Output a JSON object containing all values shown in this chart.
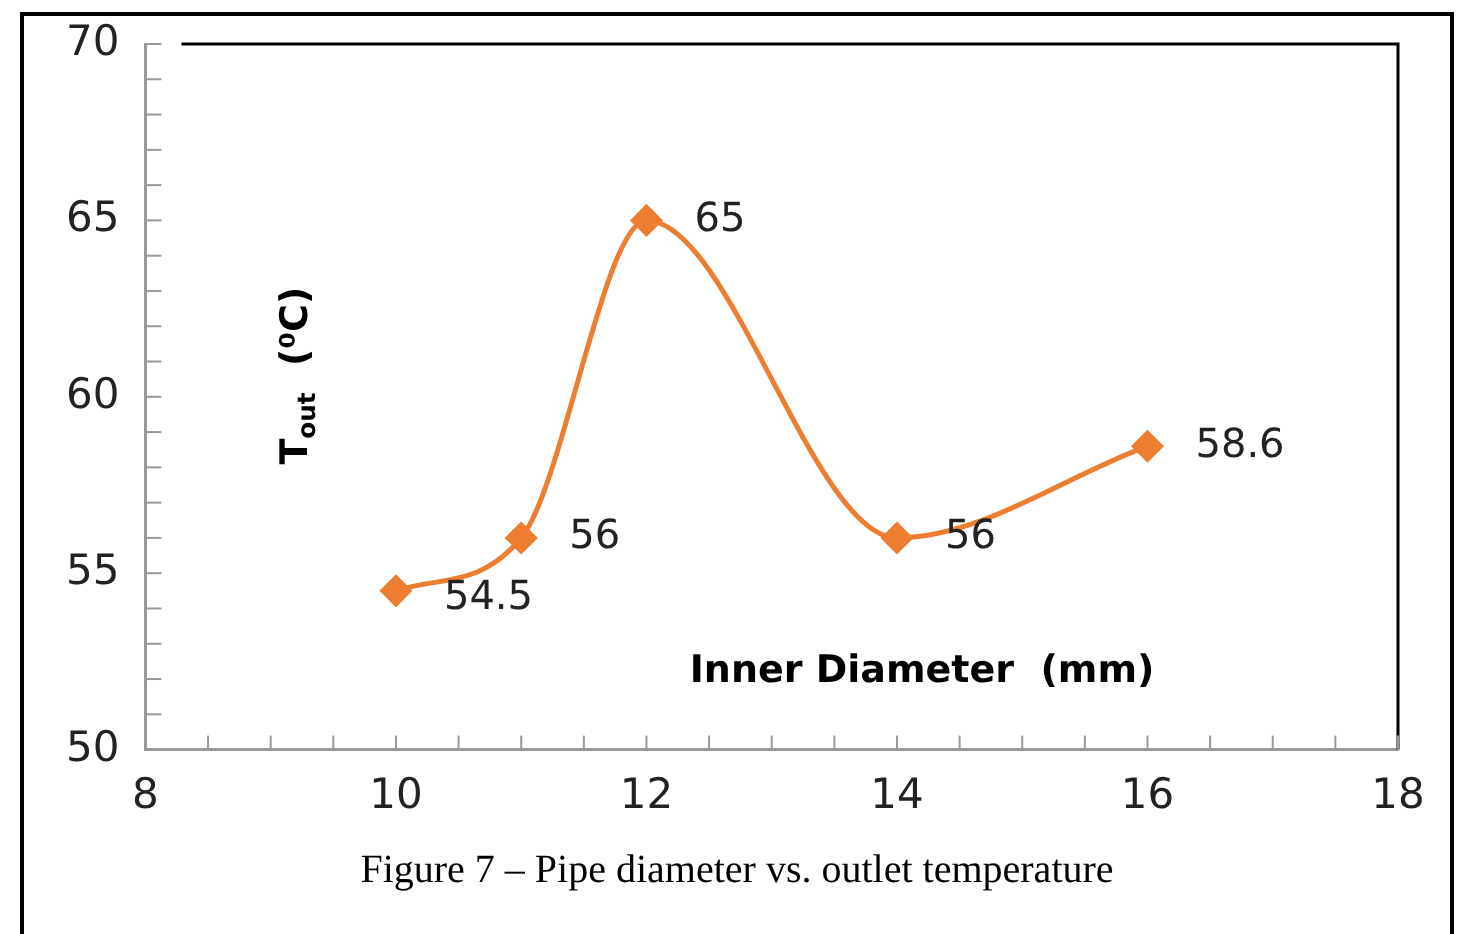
{
  "chart_data": {
    "type": "line",
    "xlabel": "Inner Diameter  (mm)",
    "ylabel": "T$_{out}$  (⁰C)",
    "x": [
      10,
      11,
      12,
      14,
      16
    ],
    "series": [
      {
        "color": "#ed7d31",
        "values": [
          54.5,
          56,
          65,
          56,
          58.6
        ]
      }
    ],
    "xlim": [
      8,
      18
    ],
    "xticks": [
      8,
      10,
      12,
      14,
      16,
      18
    ],
    "ylim": [
      50,
      70
    ],
    "yticks": [
      50,
      55,
      60,
      65,
      70
    ],
    "marker": "diamond",
    "data_labels": true,
    "grid": false,
    "legend": false,
    "annotations": [
      "Figure 7 – Pipe diameter vs. outlet temperature"
    ]
  }
}
